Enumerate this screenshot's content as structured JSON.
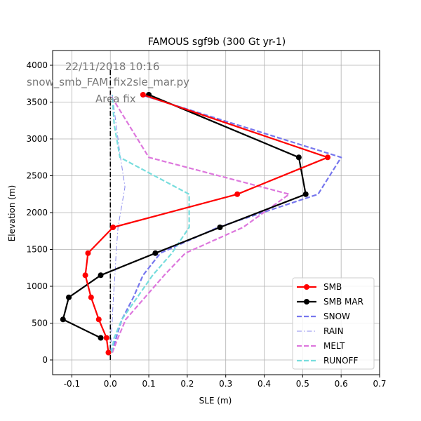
{
  "chart_data": {
    "type": "line",
    "title": "FAMOUS sgf9b (300 Gt yr-1)",
    "xlabel": "SLE (m)",
    "ylabel": "Elevation (m)",
    "xlim": [
      -0.15,
      0.7
    ],
    "ylim": [
      -200,
      4200
    ],
    "xticks": [
      "-0.1",
      "0.0",
      "0.1",
      "0.2",
      "0.3",
      "0.4",
      "0.5",
      "0.6",
      "0.7"
    ],
    "xtick_values": [
      -0.1,
      0.0,
      0.1,
      0.2,
      0.3,
      0.4,
      0.5,
      0.6,
      0.7
    ],
    "yticks": [
      "0",
      "500",
      "1000",
      "1500",
      "2000",
      "2500",
      "3000",
      "3500",
      "4000"
    ],
    "ytick_values": [
      0,
      500,
      1000,
      1500,
      2000,
      2500,
      3000,
      3500,
      4000
    ],
    "grid": true,
    "legend_position": "lower-right",
    "annotations": [
      "22/11/2018 10:16",
      "snow_smb_FAM_fix2sle_mar.py",
      "Area fix"
    ],
    "zero_line": {
      "x": 0.0,
      "y_range": [
        0,
        3950
      ],
      "color": "#000000"
    },
    "series": [
      {
        "name": "SMB",
        "color": "#ff0000",
        "style": "solid-marker",
        "x": [
          -0.005,
          -0.01,
          -0.03,
          -0.05,
          -0.065,
          -0.058,
          0.007,
          0.33,
          0.565,
          0.085
        ],
        "y": [
          100,
          300,
          550,
          850,
          1150,
          1450,
          1800,
          2250,
          2750,
          3600
        ]
      },
      {
        "name": "SMB MAR",
        "color": "#000000",
        "style": "solid-marker",
        "x": [
          -0.025,
          -0.123,
          -0.108,
          -0.025,
          0.117,
          0.285,
          0.508,
          0.49,
          0.1
        ],
        "y": [
          300,
          550,
          850,
          1150,
          1450,
          1800,
          2250,
          2750,
          3600
        ]
      },
      {
        "name": "SNOW",
        "color": "#7777ee",
        "style": "dashed",
        "x": [
          0.005,
          0.015,
          0.03,
          0.06,
          0.085,
          0.13,
          0.28,
          0.54,
          0.6,
          0.08
        ],
        "y": [
          100,
          300,
          550,
          850,
          1150,
          1450,
          1800,
          2250,
          2750,
          3600
        ]
      },
      {
        "name": "RAIN",
        "color": "#8888ee",
        "style": "dashdot-thin",
        "x": [
          0.001,
          0.003,
          0.005,
          0.008,
          0.012,
          0.015,
          0.02,
          0.038,
          0.025,
          0.005
        ],
        "y": [
          100,
          300,
          550,
          850,
          1150,
          1450,
          1800,
          2350,
          2800,
          3600
        ]
      },
      {
        "name": "MELT",
        "color": "#dd77dd",
        "style": "dashed",
        "x": [
          0.005,
          0.02,
          0.04,
          0.09,
          0.14,
          0.195,
          0.345,
          0.465,
          0.1,
          0.0
        ],
        "y": [
          100,
          300,
          550,
          850,
          1150,
          1450,
          1800,
          2250,
          2750,
          3600
        ]
      },
      {
        "name": "RUNOFF",
        "color": "#77dddd",
        "style": "dashed",
        "x": [
          0.003,
          0.01,
          0.03,
          0.07,
          0.11,
          0.16,
          0.205,
          0.205,
          0.025,
          0.01,
          0.005
        ],
        "y": [
          100,
          300,
          550,
          850,
          1150,
          1450,
          1800,
          2250,
          2750,
          3200,
          3600
        ]
      }
    ]
  }
}
